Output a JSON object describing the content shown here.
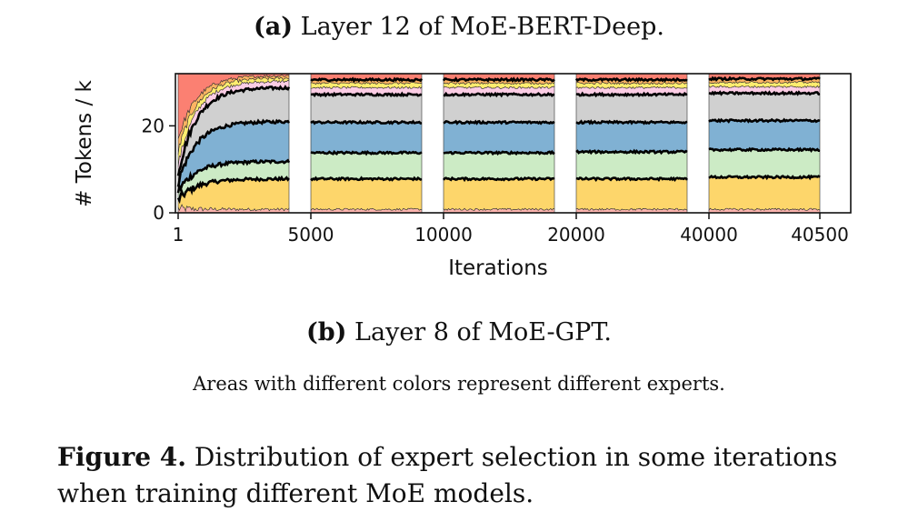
{
  "captions": {
    "a_label": "(a)",
    "a_text": " Layer 12 of MoE-BERT-Deep.",
    "b_label": "(b)",
    "b_text": " Layer 8 of MoE-GPT.",
    "note": "Areas with different colors represent different experts.",
    "figure_label": "Figure 4.",
    "figure_text": " Distribution of expert selection in some iterations when training different MoE models."
  },
  "chart_data": {
    "type": "area",
    "stacked": true,
    "title": "",
    "xlabel": "Iterations",
    "ylabel": "# Tokens / k",
    "ylim": [
      0,
      32
    ],
    "yticks": [
      0,
      20
    ],
    "x_tick_labels": [
      "1",
      "5000",
      "10000",
      "20000",
      "40000",
      "40500"
    ],
    "total_tokens": 32,
    "grid": false,
    "legend": "none",
    "expert_colors": [
      "#fbb4ae",
      "#fdd66b",
      "#ccebc5",
      "#80b1d3",
      "#d0d0d0",
      "#fccde5",
      "#ffed6f",
      "#fdb462",
      "#fb8072"
    ],
    "panels": [
      {
        "x_range": [
          1,
          5000
        ],
        "initial_cumulative": [
          1,
          3,
          5,
          7,
          9,
          11,
          14,
          17,
          20,
          23,
          26,
          29
        ],
        "final_cumulative": [
          0.8,
          7.8,
          11.8,
          21.0,
          28.8,
          30.3,
          31.0,
          31.6,
          32
        ],
        "boundary_lines": [
          7.8,
          11.8,
          21.0,
          28.8
        ]
      },
      {
        "x_range": [
          5000,
          10000
        ],
        "cumulative": [
          0.8,
          7.8,
          13.8,
          20.8,
          27.2,
          28.8,
          29.8,
          30.6,
          32
        ],
        "boundary_lines": [
          7.8,
          13.8,
          20.8,
          27.2,
          30.6
        ]
      },
      {
        "x_range": [
          10000,
          20000
        ],
        "cumulative": [
          0.8,
          7.8,
          13.8,
          20.8,
          27.2,
          28.8,
          29.8,
          30.6,
          32
        ],
        "boundary_lines": [
          7.8,
          13.8,
          20.8,
          27.2,
          30.6
        ]
      },
      {
        "x_range": [
          20000,
          40000
        ],
        "cumulative": [
          0.8,
          7.8,
          14.0,
          20.8,
          27.2,
          28.8,
          29.8,
          30.6,
          32
        ],
        "boundary_lines": [
          7.8,
          14.0,
          20.8,
          27.2,
          30.6
        ]
      },
      {
        "x_range": [
          40000,
          40500
        ],
        "cumulative": [
          0.8,
          8.2,
          14.5,
          21.2,
          27.5,
          29.0,
          30.0,
          30.8,
          32
        ],
        "boundary_lines": [
          8.2,
          14.5,
          21.2,
          27.5,
          30.8
        ]
      }
    ]
  }
}
